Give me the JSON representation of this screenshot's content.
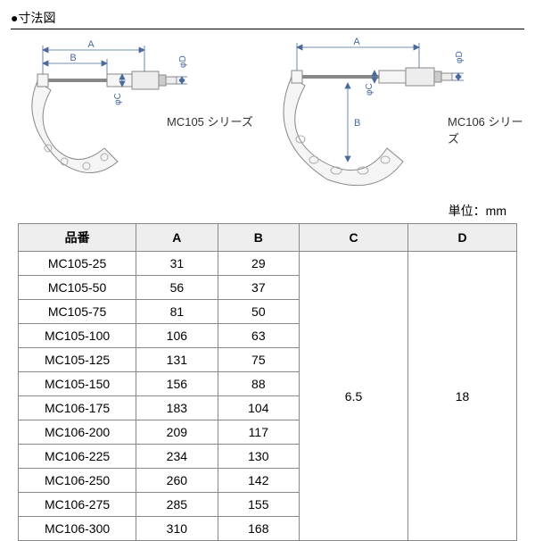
{
  "title": "●寸法図",
  "diagrams": {
    "left": {
      "series_label": "MC105 シリーズ",
      "dims": {
        "A": "A",
        "B": "B",
        "phiC": "φC",
        "phiD": "φD"
      }
    },
    "right": {
      "series_label": "MC106 シリーズ",
      "dims": {
        "A": "A",
        "B": "B",
        "phiC": "φC",
        "phiD": "φD"
      }
    }
  },
  "unit_label": "単位：mm",
  "table": {
    "headers": {
      "pn": "品番",
      "A": "A",
      "B": "B",
      "C": "C",
      "D": "D"
    },
    "rows": [
      {
        "pn": "MC105-25",
        "A": "31",
        "B": "29"
      },
      {
        "pn": "MC105-50",
        "A": "56",
        "B": "37"
      },
      {
        "pn": "MC105-75",
        "A": "81",
        "B": "50"
      },
      {
        "pn": "MC105-100",
        "A": "106",
        "B": "63"
      },
      {
        "pn": "MC105-125",
        "A": "131",
        "B": "75"
      },
      {
        "pn": "MC105-150",
        "A": "156",
        "B": "88"
      },
      {
        "pn": "MC106-175",
        "A": "183",
        "B": "104"
      },
      {
        "pn": "MC106-200",
        "A": "209",
        "B": "117"
      },
      {
        "pn": "MC106-225",
        "A": "234",
        "B": "130"
      },
      {
        "pn": "MC106-250",
        "A": "260",
        "B": "142"
      },
      {
        "pn": "MC106-275",
        "A": "285",
        "B": "155"
      },
      {
        "pn": "MC106-300",
        "A": "310",
        "B": "168"
      }
    ],
    "C_merged": "6.5",
    "D_merged": "18"
  },
  "style": {
    "colors": {
      "background": "#ffffff",
      "text": "#000000",
      "border": "#888888",
      "header_bg": "#eeeeee",
      "dim_line": "#4a6a9a",
      "body_stroke": "#888888",
      "body_fill": "#f5f5f5"
    }
  }
}
